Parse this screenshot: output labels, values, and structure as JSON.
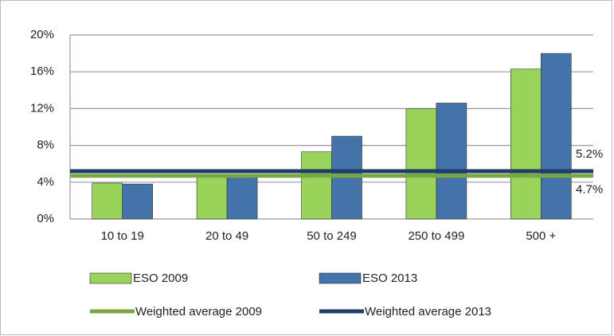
{
  "chart_data": {
    "type": "bar",
    "categories": [
      "10 to 19",
      "20 to 49",
      "50 to 249",
      "250 to 499",
      "500 +"
    ],
    "series": [
      {
        "name": "ESO 2009",
        "color": "#99d35a",
        "values": [
          3.9,
          4.6,
          7.3,
          12.0,
          16.3
        ]
      },
      {
        "name": "ESO  2013",
        "color": "#4373a8",
        "values": [
          3.8,
          4.6,
          9.0,
          12.6,
          18.0
        ]
      }
    ],
    "reference_lines": [
      {
        "name": "Weighted average 2009",
        "color": "#7ba644",
        "value": 4.7,
        "value_label": "4.7%"
      },
      {
        "name": "Weighted average 2013",
        "color": "#1f3e67",
        "value": 5.2,
        "value_label": "5.2%"
      }
    ],
    "ylim": [
      0,
      20
    ],
    "yticks": [
      {
        "value": 0,
        "label": "0%"
      },
      {
        "value": 4,
        "label": "4%"
      },
      {
        "value": 8,
        "label": "8%"
      },
      {
        "value": 12,
        "label": "12%"
      },
      {
        "value": 16,
        "label": "16%"
      },
      {
        "value": 20,
        "label": "20%"
      }
    ],
    "grid": true
  }
}
